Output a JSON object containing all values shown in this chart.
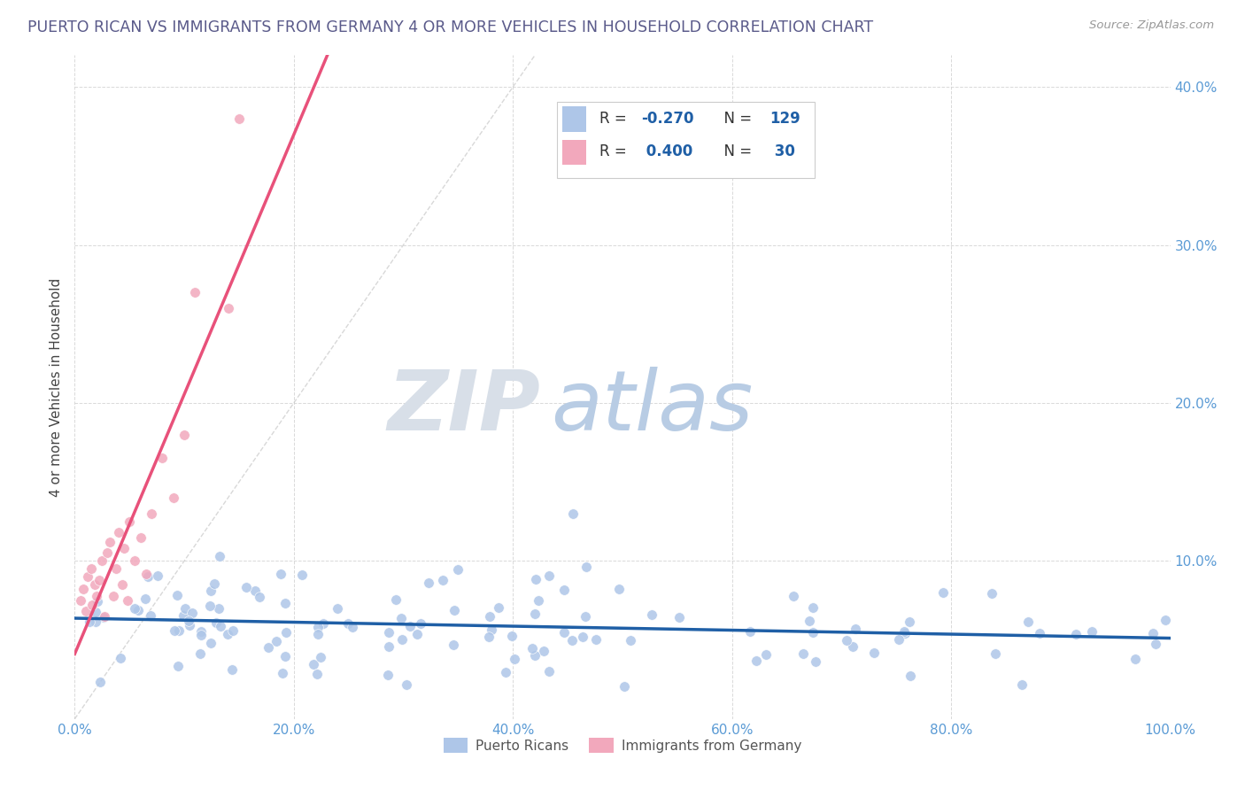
{
  "title": "PUERTO RICAN VS IMMIGRANTS FROM GERMANY 4 OR MORE VEHICLES IN HOUSEHOLD CORRELATION CHART",
  "source": "Source: ZipAtlas.com",
  "ylabel": "4 or more Vehicles in Household",
  "xlim": [
    0,
    1.0
  ],
  "ylim": [
    0,
    0.42
  ],
  "xtick_vals": [
    0.0,
    0.2,
    0.4,
    0.6,
    0.8,
    1.0
  ],
  "xtick_labels": [
    "0.0%",
    "20.0%",
    "40.0%",
    "60.0%",
    "80.0%",
    "100.0%"
  ],
  "ytick_vals": [
    0.0,
    0.1,
    0.2,
    0.3,
    0.4
  ],
  "ytick_labels": [
    "",
    "10.0%",
    "20.0%",
    "30.0%",
    "40.0%"
  ],
  "legend_labels": [
    "Puerto Ricans",
    "Immigrants from Germany"
  ],
  "r_blue": -0.27,
  "n_blue": 129,
  "r_pink": 0.4,
  "n_pink": 30,
  "blue_color": "#aec6e8",
  "pink_color": "#f2a8bc",
  "blue_line_color": "#1f5fa6",
  "pink_line_color": "#e8517a",
  "diagonal_color": "#c8c8c8",
  "title_color": "#5a5a8a",
  "axis_label_color": "#5b9bd5",
  "ylabel_color": "#444444",
  "watermark_zip_color": "#c8d8e8",
  "watermark_atlas_color": "#b8cce4",
  "source_color": "#999999",
  "legend_text_color": "#333333",
  "legend_r_color": "#1f5fa6",
  "grid_color": "#d0d0d0"
}
